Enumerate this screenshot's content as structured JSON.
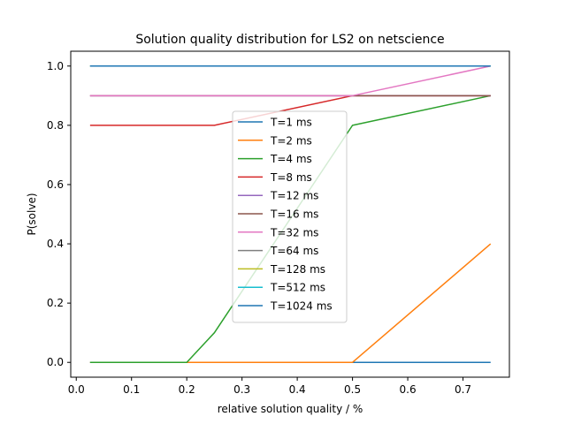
{
  "chart_data": {
    "type": "line",
    "title": "Solution quality distribution for LS2 on netscience",
    "xlabel": "relative solution quality / %",
    "ylabel": "P(solve)",
    "xlim": [
      -0.01,
      0.784
    ],
    "ylim": [
      -0.05,
      1.05
    ],
    "xticks": [
      0.0,
      0.1,
      0.2,
      0.3,
      0.4,
      0.5,
      0.6,
      0.7
    ],
    "xtick_labels": [
      "0.0",
      "0.1",
      "0.2",
      "0.3",
      "0.4",
      "0.5",
      "0.6",
      "0.7"
    ],
    "yticks": [
      0.0,
      0.2,
      0.4,
      0.6,
      0.8,
      1.0
    ],
    "ytick_labels": [
      "0.0",
      "0.2",
      "0.4",
      "0.6",
      "0.8",
      "1.0"
    ],
    "grid": false,
    "legend_position": "center",
    "x": [
      0.025,
      0.05,
      0.1,
      0.2,
      0.25,
      0.5,
      0.75
    ],
    "series": [
      {
        "name": "T=1 ms",
        "color": "#1f77b4",
        "values": [
          0,
          0,
          0,
          0,
          0,
          0,
          0
        ]
      },
      {
        "name": "T=2 ms",
        "color": "#ff7f0e",
        "values": [
          0,
          0,
          0,
          0,
          0,
          0,
          0.4
        ]
      },
      {
        "name": "T=4 ms",
        "color": "#2ca02c",
        "values": [
          0,
          0,
          0,
          0,
          0.1,
          0.8,
          0.9
        ]
      },
      {
        "name": "T=8 ms",
        "color": "#d62728",
        "values": [
          0.8,
          0.8,
          0.8,
          0.8,
          0.8,
          0.9,
          0.9
        ]
      },
      {
        "name": "T=12 ms",
        "color": "#9467bd",
        "values": [
          0.9,
          0.9,
          0.9,
          0.9,
          0.9,
          0.9,
          0.9
        ]
      },
      {
        "name": "T=16 ms",
        "color": "#8c564b",
        "values": [
          0.9,
          0.9,
          0.9,
          0.9,
          0.9,
          0.9,
          0.9
        ]
      },
      {
        "name": "T=32 ms",
        "color": "#e377c2",
        "values": [
          0.9,
          0.9,
          0.9,
          0.9,
          0.9,
          0.9,
          1.0
        ]
      },
      {
        "name": "T=64 ms",
        "color": "#7f7f7f",
        "values": [
          1.0,
          1.0,
          1.0,
          1.0,
          1.0,
          1.0,
          1.0
        ]
      },
      {
        "name": "T=128 ms",
        "color": "#bcbd22",
        "values": [
          1.0,
          1.0,
          1.0,
          1.0,
          1.0,
          1.0,
          1.0
        ]
      },
      {
        "name": "T=512 ms",
        "color": "#17becf",
        "values": [
          1.0,
          1.0,
          1.0,
          1.0,
          1.0,
          1.0,
          1.0
        ]
      },
      {
        "name": "T=1024 ms",
        "color": "#1f77b4",
        "values": [
          1.0,
          1.0,
          1.0,
          1.0,
          1.0,
          1.0,
          1.0
        ]
      }
    ]
  }
}
